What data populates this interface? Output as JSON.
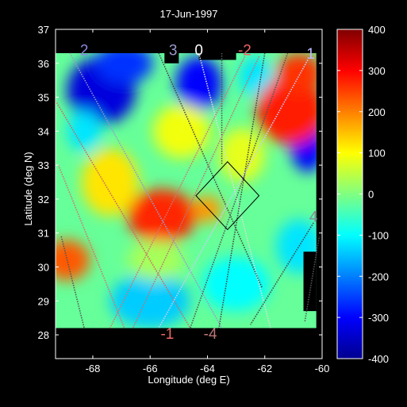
{
  "chart_data": {
    "type": "heatmap",
    "title": "17-Jun-1997",
    "xlabel": "Longitude (deg E)",
    "ylabel": "Latitude (deg N)",
    "xlim": [
      -69.3,
      -60
    ],
    "ylim": [
      27.3,
      37
    ],
    "x_ticks": [
      -68,
      -66,
      -64,
      -62,
      -60
    ],
    "y_ticks": [
      28,
      29,
      30,
      31,
      32,
      33,
      34,
      35,
      36,
      37
    ],
    "data_extent": {
      "lon": [
        -69.3,
        -60.2
      ],
      "lat": [
        28.2,
        36.3
      ]
    },
    "colorbar": {
      "range": [
        -400,
        400
      ],
      "ticks": [
        400,
        300,
        200,
        100,
        0,
        -100,
        -200,
        -300,
        -400
      ],
      "colormap": "jet"
    },
    "blobs": [
      {
        "lon": -67.7,
        "lat": 35.2,
        "value": -330,
        "rx": 1.2,
        "ry": 1.0
      },
      {
        "lon": -66.9,
        "lat": 36.0,
        "value": -260,
        "rx": 1.0,
        "ry": 0.6
      },
      {
        "lon": -64.3,
        "lat": 35.4,
        "value": -300,
        "rx": 0.8,
        "ry": 0.8
      },
      {
        "lon": -62.3,
        "lat": 35.6,
        "value": -120,
        "rx": 0.6,
        "ry": 0.6
      },
      {
        "lon": -60.5,
        "lat": 33.6,
        "value": -300,
        "rx": 0.6,
        "ry": 0.8
      },
      {
        "lon": -61.1,
        "lat": 34.6,
        "value": 280,
        "rx": 1.2,
        "ry": 1.0
      },
      {
        "lon": -60.8,
        "lat": 35.7,
        "value": 260,
        "rx": 0.8,
        "ry": 0.6
      },
      {
        "lon": -65.6,
        "lat": 31.5,
        "value": 270,
        "rx": 1.2,
        "ry": 0.8
      },
      {
        "lon": -64.0,
        "lat": 31.7,
        "value": 180,
        "rx": 0.5,
        "ry": 0.4
      },
      {
        "lon": -68.9,
        "lat": 30.2,
        "value": 230,
        "rx": 0.8,
        "ry": 0.6
      },
      {
        "lon": -67.4,
        "lat": 32.5,
        "value": 120,
        "rx": 1.0,
        "ry": 1.0
      },
      {
        "lon": -64.9,
        "lat": 34.0,
        "value": 90,
        "rx": 1.0,
        "ry": 0.8
      },
      {
        "lon": -62.8,
        "lat": 33.3,
        "value": 80,
        "rx": 0.8,
        "ry": 0.8
      },
      {
        "lon": -66.0,
        "lat": 29.0,
        "value": -140,
        "rx": 1.4,
        "ry": 0.8
      },
      {
        "lon": -63.0,
        "lat": 29.5,
        "value": -100,
        "rx": 1.2,
        "ry": 0.8
      },
      {
        "lon": -60.8,
        "lat": 30.6,
        "value": -120,
        "rx": 0.8,
        "ry": 0.8
      },
      {
        "lon": -68.3,
        "lat": 34.0,
        "value": -120,
        "rx": 0.6,
        "ry": 0.6
      },
      {
        "lon": -65.8,
        "lat": 30.2,
        "value": 30,
        "rx": 1.0,
        "ry": 0.6
      }
    ],
    "track_labels": [
      {
        "text": "2",
        "lon": -68.3,
        "lat": 36.4,
        "color": "#8888dd"
      },
      {
        "text": "3",
        "lon": -65.2,
        "lat": 36.4,
        "color": "#9999cc"
      },
      {
        "text": "0",
        "lon": -64.3,
        "lat": 36.4,
        "color": "#ffffff"
      },
      {
        "text": "-2",
        "lon": -62.7,
        "lat": 36.4,
        "color": "#ee6666"
      },
      {
        "text": "1",
        "lon": -60.4,
        "lat": 36.3,
        "color": "#bbbbff"
      },
      {
        "text": "4",
        "lon": -60.3,
        "lat": 31.5,
        "color": "#888899"
      },
      {
        "text": "-1",
        "lon": -65.4,
        "lat": 28.05,
        "color": "#ee6666"
      },
      {
        "text": "-4",
        "lon": -63.9,
        "lat": 28.05,
        "color": "#bb7777"
      }
    ],
    "tracks": [
      {
        "from": [
          -69.3,
          34.9
        ],
        "to": [
          -64.6,
          28.2
        ],
        "color": "#cc6666"
      },
      {
        "from": [
          -68.8,
          36.3
        ],
        "to": [
          -63.5,
          28.2
        ],
        "color": "#9999cc"
      },
      {
        "from": [
          -69.2,
          33.0
        ],
        "to": [
          -66.9,
          28.2
        ],
        "color": "#cc7777"
      },
      {
        "from": [
          -69.1,
          30.9
        ],
        "to": [
          -68.3,
          28.2
        ],
        "color": "#555555"
      },
      {
        "from": [
          -65.7,
          36.3
        ],
        "to": [
          -62.1,
          29.4
        ],
        "color": "#444444"
      },
      {
        "from": [
          -64.3,
          36.3
        ],
        "to": [
          -61.8,
          28.2
        ],
        "color": "#dddddd"
      },
      {
        "from": [
          -63.5,
          36.3
        ],
        "to": [
          -63.5,
          33.0
        ],
        "color": "#555555"
      },
      {
        "from": [
          -62.0,
          36.3
        ],
        "to": [
          -63.6,
          28.2
        ],
        "color": "#444444"
      },
      {
        "from": [
          -62.7,
          36.2
        ],
        "to": [
          -67.4,
          28.2
        ],
        "color": "#cc7777"
      },
      {
        "from": [
          -62.2,
          36.2
        ],
        "to": [
          -66.6,
          28.2
        ],
        "color": "#bb7777"
      },
      {
        "from": [
          -61.2,
          36.3
        ],
        "to": [
          -64.6,
          28.2
        ],
        "color": "#555555"
      },
      {
        "from": [
          -60.5,
          36.1
        ],
        "to": [
          -65.7,
          28.2
        ],
        "color": "#ccccff"
      },
      {
        "from": [
          -60.3,
          31.3
        ],
        "to": [
          -62.5,
          28.3
        ],
        "color": "#444444"
      },
      {
        "from": [
          -60.6,
          28.4
        ],
        "to": [
          -60.1,
          30.9
        ],
        "color": "#555555"
      }
    ],
    "box_corners": [
      [
        -63.3,
        33.1
      ],
      [
        -62.2,
        32.1
      ],
      [
        -63.3,
        31.1
      ],
      [
        -64.4,
        32.1
      ]
    ],
    "mask_notches": [
      {
        "lon0": -65.5,
        "lon1": -65.0,
        "lat0": 36.0,
        "lat1": 36.5
      },
      {
        "lon0": -64.3,
        "lon1": -63.0,
        "lat0": 36.1,
        "lat1": 36.5
      },
      {
        "lon0": -60.65,
        "lon1": -60.2,
        "lat0": 28.7,
        "lat1": 30.45
      }
    ]
  }
}
